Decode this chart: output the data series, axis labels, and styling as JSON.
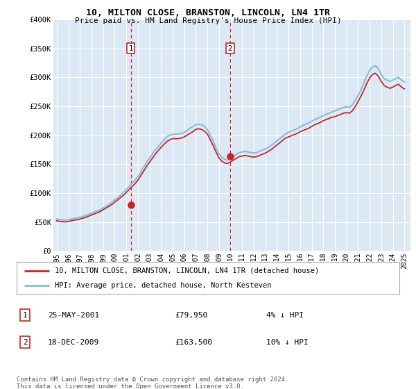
{
  "title": "10, MILTON CLOSE, BRANSTON, LINCOLN, LN4 1TR",
  "subtitle": "Price paid vs. HM Land Registry's House Price Index (HPI)",
  "background_color": "white",
  "plot_bg_color": "#dce9f5",
  "ylabel_ticks": [
    "£0",
    "£50K",
    "£100K",
    "£150K",
    "£200K",
    "£250K",
    "£300K",
    "£350K",
    "£400K"
  ],
  "ytick_values": [
    0,
    50000,
    100000,
    150000,
    200000,
    250000,
    300000,
    350000,
    400000
  ],
  "ylim": [
    0,
    400000
  ],
  "xlim_start": 1994.7,
  "xlim_end": 2025.5,
  "xtick_years": [
    1995,
    1996,
    1997,
    1998,
    1999,
    2000,
    2001,
    2002,
    2003,
    2004,
    2005,
    2006,
    2007,
    2008,
    2009,
    2010,
    2011,
    2012,
    2013,
    2014,
    2015,
    2016,
    2017,
    2018,
    2019,
    2020,
    2021,
    2022,
    2023,
    2024,
    2025
  ],
  "transaction1_x": 2001.39,
  "transaction1_y": 79950,
  "transaction1_label": "1",
  "transaction1_date": "25-MAY-2001",
  "transaction1_price": "£79,950",
  "transaction1_hpi": "4% ↓ HPI",
  "transaction2_x": 2009.96,
  "transaction2_y": 163500,
  "transaction2_label": "2",
  "transaction2_date": "18-DEC-2009",
  "transaction2_price": "£163,500",
  "transaction2_hpi": "10% ↓ HPI",
  "legend_line1": "10, MILTON CLOSE, BRANSTON, LINCOLN, LN4 1TR (detached house)",
  "legend_line2": "HPI: Average price, detached house, North Kesteven",
  "footer": "Contains HM Land Registry data © Crown copyright and database right 2024.\nThis data is licensed under the Open Government Licence v3.0.",
  "hpi_color": "#7fbfdf",
  "price_color": "#cc2222",
  "transaction_color": "#cc2222",
  "hpi_data_x": [
    1995.0,
    1995.25,
    1995.5,
    1995.75,
    1996.0,
    1996.25,
    1996.5,
    1996.75,
    1997.0,
    1997.25,
    1997.5,
    1997.75,
    1998.0,
    1998.25,
    1998.5,
    1998.75,
    1999.0,
    1999.25,
    1999.5,
    1999.75,
    2000.0,
    2000.25,
    2000.5,
    2000.75,
    2001.0,
    2001.25,
    2001.5,
    2001.75,
    2002.0,
    2002.25,
    2002.5,
    2002.75,
    2003.0,
    2003.25,
    2003.5,
    2003.75,
    2004.0,
    2004.25,
    2004.5,
    2004.75,
    2005.0,
    2005.25,
    2005.5,
    2005.75,
    2006.0,
    2006.25,
    2006.5,
    2006.75,
    2007.0,
    2007.25,
    2007.5,
    2007.75,
    2008.0,
    2008.25,
    2008.5,
    2008.75,
    2009.0,
    2009.25,
    2009.5,
    2009.75,
    2010.0,
    2010.25,
    2010.5,
    2010.75,
    2011.0,
    2011.25,
    2011.5,
    2011.75,
    2012.0,
    2012.25,
    2012.5,
    2012.75,
    2013.0,
    2013.25,
    2013.5,
    2013.75,
    2014.0,
    2014.25,
    2014.5,
    2014.75,
    2015.0,
    2015.25,
    2015.5,
    2015.75,
    2016.0,
    2016.25,
    2016.5,
    2016.75,
    2017.0,
    2017.25,
    2017.5,
    2017.75,
    2018.0,
    2018.25,
    2018.5,
    2018.75,
    2019.0,
    2019.25,
    2019.5,
    2019.75,
    2020.0,
    2020.25,
    2020.5,
    2020.75,
    2021.0,
    2021.25,
    2021.5,
    2021.75,
    2022.0,
    2022.25,
    2022.5,
    2022.75,
    2023.0,
    2023.25,
    2023.5,
    2023.75,
    2024.0,
    2024.25,
    2024.5,
    2024.75,
    2025.0
  ],
  "hpi_data_y": [
    55000,
    54000,
    53500,
    53000,
    54000,
    55000,
    56000,
    57000,
    58000,
    59500,
    61000,
    63000,
    65000,
    67000,
    69000,
    71000,
    74000,
    77000,
    80000,
    84000,
    88000,
    92000,
    96000,
    101000,
    106000,
    111000,
    117000,
    122000,
    128000,
    136000,
    145000,
    153000,
    160000,
    167000,
    174000,
    180000,
    186000,
    192000,
    197000,
    200000,
    201000,
    202000,
    202000,
    203000,
    205000,
    208000,
    212000,
    215000,
    218000,
    219000,
    218000,
    215000,
    210000,
    200000,
    190000,
    178000,
    168000,
    162000,
    158000,
    157000,
    160000,
    163000,
    167000,
    170000,
    171000,
    172000,
    171000,
    170000,
    169000,
    170000,
    172000,
    174000,
    176000,
    179000,
    182000,
    186000,
    190000,
    194000,
    198000,
    202000,
    205000,
    207000,
    209000,
    211000,
    214000,
    217000,
    219000,
    221000,
    224000,
    227000,
    229000,
    231000,
    234000,
    236000,
    238000,
    240000,
    242000,
    244000,
    246000,
    248000,
    249000,
    248000,
    252000,
    260000,
    268000,
    278000,
    290000,
    302000,
    312000,
    318000,
    320000,
    315000,
    305000,
    298000,
    295000,
    293000,
    295000,
    298000,
    300000,
    295000,
    292000
  ],
  "price_data_x": [
    1995.0,
    1995.25,
    1995.5,
    1995.75,
    1996.0,
    1996.25,
    1996.5,
    1996.75,
    1997.0,
    1997.25,
    1997.5,
    1997.75,
    1998.0,
    1998.25,
    1998.5,
    1998.75,
    1999.0,
    1999.25,
    1999.5,
    1999.75,
    2000.0,
    2000.25,
    2000.5,
    2000.75,
    2001.0,
    2001.25,
    2001.5,
    2001.75,
    2002.0,
    2002.25,
    2002.5,
    2002.75,
    2003.0,
    2003.25,
    2003.5,
    2003.75,
    2004.0,
    2004.25,
    2004.5,
    2004.75,
    2005.0,
    2005.25,
    2005.5,
    2005.75,
    2006.0,
    2006.25,
    2006.5,
    2006.75,
    2007.0,
    2007.25,
    2007.5,
    2007.75,
    2008.0,
    2008.25,
    2008.5,
    2008.75,
    2009.0,
    2009.25,
    2009.5,
    2009.75,
    2010.0,
    2010.25,
    2010.5,
    2010.75,
    2011.0,
    2011.25,
    2011.5,
    2011.75,
    2012.0,
    2012.25,
    2012.5,
    2012.75,
    2013.0,
    2013.25,
    2013.5,
    2013.75,
    2014.0,
    2014.25,
    2014.5,
    2014.75,
    2015.0,
    2015.25,
    2015.5,
    2015.75,
    2016.0,
    2016.25,
    2016.5,
    2016.75,
    2017.0,
    2017.25,
    2017.5,
    2017.75,
    2018.0,
    2018.25,
    2018.5,
    2018.75,
    2019.0,
    2019.25,
    2019.5,
    2019.75,
    2020.0,
    2020.25,
    2020.5,
    2020.75,
    2021.0,
    2021.25,
    2021.5,
    2021.75,
    2022.0,
    2022.25,
    2022.5,
    2022.75,
    2023.0,
    2023.25,
    2023.5,
    2023.75,
    2024.0,
    2024.25,
    2024.5,
    2024.75,
    2025.0
  ],
  "price_data_y": [
    52000,
    51000,
    50500,
    50000,
    51000,
    52000,
    53000,
    54000,
    55000,
    56500,
    58000,
    60000,
    62000,
    64000,
    66000,
    68000,
    71000,
    74000,
    77000,
    80000,
    84000,
    88000,
    92000,
    96000,
    101000,
    106000,
    111000,
    116000,
    122000,
    130000,
    138000,
    146000,
    153000,
    160000,
    167000,
    173000,
    179000,
    184000,
    189000,
    192000,
    194000,
    194000,
    194000,
    195000,
    197000,
    200000,
    203000,
    206000,
    210000,
    211000,
    210000,
    207000,
    202000,
    192000,
    182000,
    171000,
    161000,
    155000,
    152000,
    151000,
    154000,
    157000,
    160000,
    163000,
    164000,
    165000,
    164000,
    163000,
    162000,
    163000,
    165000,
    167000,
    169000,
    172000,
    175000,
    179000,
    183000,
    187000,
    191000,
    195000,
    197000,
    199000,
    201000,
    203000,
    206000,
    208000,
    210000,
    212000,
    215000,
    218000,
    220000,
    222000,
    225000,
    227000,
    229000,
    231000,
    232000,
    234000,
    236000,
    238000,
    239000,
    238000,
    242000,
    249000,
    258000,
    267000,
    278000,
    289000,
    299000,
    305000,
    307000,
    302000,
    293000,
    286000,
    283000,
    281000,
    283000,
    286000,
    288000,
    283000,
    280000
  ]
}
